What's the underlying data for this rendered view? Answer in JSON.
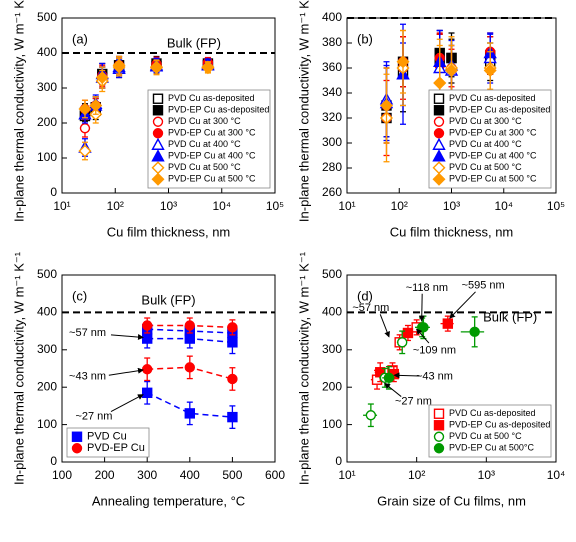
{
  "chart_data": [
    {
      "type": "scatter",
      "panel_label": "(a)",
      "x_label": "Cu film thickness, nm",
      "y_label": "In-plane thermal conductivity, W m⁻¹ K⁻¹",
      "log_x": true,
      "xlim": [
        10,
        100000
      ],
      "xticks": [
        {
          "value": 10,
          "label": "10¹"
        },
        {
          "value": 100,
          "label": "10²"
        },
        {
          "value": 1000,
          "label": "10³"
        },
        {
          "value": 10000,
          "label": "10⁴"
        },
        {
          "value": 100000,
          "label": "10⁵"
        }
      ],
      "ylim": [
        0,
        500
      ],
      "yticks": [
        0,
        100,
        200,
        300,
        400,
        500
      ],
      "legend": "lower right",
      "reference": {
        "value": 400,
        "label": "Bulk (FP)"
      },
      "series": [
        {
          "name": "PVD Cu as-deposited",
          "color": "#000000",
          "marker": "square",
          "filled": false,
          "x": [
            27,
            43,
            57,
            118,
            595,
            5500
          ],
          "values": [
            220,
            235,
            330,
            355,
            362,
            365
          ],
          "errors": [
            25,
            25,
            30,
            25,
            20,
            15
          ]
        },
        {
          "name": "PVD-EP Cu as-deposited",
          "color": "#000000",
          "marker": "square",
          "filled": true,
          "x": [
            27,
            43,
            57,
            118,
            595,
            5500
          ],
          "values": [
            230,
            245,
            340,
            365,
            370,
            370
          ],
          "errors": [
            25,
            25,
            30,
            25,
            20,
            15
          ]
        },
        {
          "name": "PVD Cu at 300 °C",
          "color": "#ff0000",
          "marker": "circle",
          "filled": false,
          "x": [
            27,
            43,
            57,
            118,
            595,
            5500
          ],
          "values": [
            185,
            245,
            330,
            360,
            365,
            370
          ],
          "errors": [
            25,
            25,
            30,
            25,
            20,
            15
          ]
        },
        {
          "name": "PVD-EP Cu at 300 °C",
          "color": "#ff0000",
          "marker": "circle",
          "filled": true,
          "x": [
            27,
            43,
            57,
            118,
            595,
            5500
          ],
          "values": [
            240,
            250,
            335,
            365,
            368,
            372
          ],
          "errors": [
            25,
            25,
            30,
            25,
            20,
            15
          ]
        },
        {
          "name": "PVD Cu at 400 °C",
          "color": "#0000ff",
          "marker": "triangle",
          "filled": false,
          "x": [
            27,
            43,
            57,
            118,
            595,
            5500
          ],
          "values": [
            130,
            255,
            330,
            355,
            362,
            365
          ],
          "errors": [
            25,
            25,
            30,
            25,
            20,
            15
          ]
        },
        {
          "name": "PVD-EP Cu at 400 °C",
          "color": "#0000ff",
          "marker": "triangle",
          "filled": true,
          "x": [
            27,
            43,
            57,
            118,
            595,
            5500
          ],
          "values": [
            225,
            250,
            340,
            360,
            365,
            368
          ],
          "errors": [
            25,
            25,
            30,
            25,
            20,
            15
          ]
        },
        {
          "name": "PVD Cu at 500 °C",
          "color": "#ff9900",
          "marker": "diamond",
          "filled": false,
          "x": [
            27,
            43,
            57,
            118,
            595,
            5500
          ],
          "values": [
            120,
            225,
            320,
            360,
            358,
            360
          ],
          "errors": [
            25,
            25,
            30,
            25,
            20,
            15
          ]
        },
        {
          "name": "PVD-EP Cu at 500 °C",
          "color": "#ff9900",
          "marker": "diamond",
          "filled": true,
          "x": [
            27,
            43,
            57,
            118,
            595,
            5500
          ],
          "values": [
            240,
            250,
            330,
            365,
            360,
            358
          ],
          "errors": [
            25,
            25,
            30,
            25,
            20,
            15
          ]
        }
      ]
    },
    {
      "type": "scatter",
      "panel_label": "(b)",
      "x_label": "Cu film thickness, nm",
      "y_label": "In-plane thermal conductivity, W m⁻¹ K⁻¹",
      "log_x": true,
      "xlim": [
        10,
        100000
      ],
      "xticks": [
        {
          "value": 10,
          "label": "10¹"
        },
        {
          "value": 100,
          "label": "10²"
        },
        {
          "value": 1000,
          "label": "10³"
        },
        {
          "value": 10000,
          "label": "10⁴"
        },
        {
          "value": 100000,
          "label": "10⁵"
        }
      ],
      "ylim": [
        260,
        400
      ],
      "yticks": [
        260,
        280,
        300,
        320,
        340,
        360,
        380,
        400
      ],
      "legend": "lower right",
      "reference": {
        "value": 400
      },
      "series": [
        {
          "name": "PVD Cu as-deposited",
          "color": "#000000",
          "marker": "square",
          "filled": false,
          "x": [
            57,
            118,
            595,
            1000,
            5500
          ],
          "values": [
            320,
            355,
            365,
            368,
            365
          ],
          "errors": [
            15,
            30,
            25,
            20,
            15
          ]
        },
        {
          "name": "PVD-EP Cu as-deposited",
          "color": "#000000",
          "marker": "square",
          "filled": true,
          "x": [
            57,
            118,
            595,
            1000,
            5500
          ],
          "values": [
            330,
            365,
            372,
            368,
            370
          ],
          "errors": [
            30,
            20,
            15,
            15,
            15
          ]
        },
        {
          "name": "PVD Cu at 300 °C",
          "color": "#ff0000",
          "marker": "circle",
          "filled": false,
          "x": [
            57,
            118,
            595,
            1000,
            5500
          ],
          "values": [
            320,
            360,
            362,
            358,
            370
          ],
          "errors": [
            30,
            25,
            25,
            20,
            15
          ]
        },
        {
          "name": "PVD-EP Cu at 300 °C",
          "color": "#ff0000",
          "marker": "circle",
          "filled": true,
          "x": [
            57,
            118,
            595,
            1000,
            5500
          ],
          "values": [
            330,
            365,
            368,
            360,
            373
          ],
          "errors": [
            30,
            20,
            20,
            15,
            15
          ]
        },
        {
          "name": "PVD Cu at 400 °C",
          "color": "#0000ff",
          "marker": "triangle",
          "filled": false,
          "x": [
            57,
            118,
            595,
            1000,
            5500
          ],
          "values": [
            335,
            355,
            360,
            358,
            368
          ],
          "errors": [
            30,
            40,
            30,
            20,
            20
          ]
        },
        {
          "name": "PVD-EP Cu at 400 °C",
          "color": "#0000ff",
          "marker": "triangle",
          "filled": true,
          "x": [
            57,
            118,
            595,
            1000,
            5500
          ],
          "values": [
            332,
            355,
            365,
            362,
            372
          ],
          "errors": [
            30,
            25,
            25,
            20,
            15
          ]
        },
        {
          "name": "PVD Cu at 500 °C",
          "color": "#ff9900",
          "marker": "diamond",
          "filled": false,
          "x": [
            57,
            118,
            595,
            1000,
            5500
          ],
          "values": [
            320,
            360,
            348,
            360,
            360
          ],
          "errors": [
            35,
            30,
            35,
            25,
            20
          ]
        },
        {
          "name": "PVD-EP Cu at 500 °C",
          "color": "#ff9900",
          "marker": "diamond",
          "filled": true,
          "x": [
            57,
            118,
            595,
            1000,
            5500
          ],
          "values": [
            330,
            365,
            348,
            358,
            358
          ],
          "errors": [
            30,
            25,
            30,
            20,
            15
          ]
        }
      ]
    },
    {
      "type": "line",
      "panel_label": "(c)",
      "x_label": "Annealing temperature, °C",
      "y_label": "In-plane thermal conductivity, W m⁻¹ K⁻¹",
      "xlim": [
        100,
        600
      ],
      "xticks": [
        100,
        200,
        300,
        400,
        500,
        600
      ],
      "ylim": [
        0,
        500
      ],
      "yticks": [
        0,
        100,
        200,
        300,
        400,
        500
      ],
      "legend": "lower left",
      "reference": {
        "value": 400,
        "label": "Bulk (FP)"
      },
      "x": [
        300,
        400,
        500
      ],
      "annotations": [
        "~57 nm",
        "~43 nm",
        "~27 nm"
      ],
      "series": [
        {
          "name": "PVD Cu",
          "color": "#0000ff",
          "marker": "square",
          "filled": true,
          "groups": [
            {
              "values": [
                355,
                350,
                345
              ],
              "errors": [
                20,
                20,
                20
              ]
            },
            {
              "values": [
                330,
                330,
                320
              ],
              "errors": [
                25,
                25,
                30
              ]
            },
            {
              "values": [
                185,
                130,
                120
              ],
              "errors": [
                30,
                30,
                30
              ]
            }
          ]
        },
        {
          "name": "PVD-EP Cu",
          "color": "#ff0000",
          "marker": "circle",
          "filled": true,
          "groups": [
            {
              "values": [
                365,
                365,
                360
              ],
              "errors": [
                20,
                20,
                20
              ]
            },
            {
              "values": [
                248,
                253,
                222
              ],
              "errors": [
                30,
                30,
                30
              ]
            }
          ]
        }
      ]
    },
    {
      "type": "scatter",
      "panel_label": "(d)",
      "x_label": "Grain size of Cu films, nm",
      "y_label": "In-plane thermal conductivity, W m⁻¹ K⁻¹",
      "log_x": true,
      "xlim": [
        10,
        10000
      ],
      "xticks": [
        {
          "value": 10,
          "label": "10¹"
        },
        {
          "value": 100,
          "label": "10²"
        },
        {
          "value": 1000,
          "label": "10³"
        },
        {
          "value": 10000,
          "label": "10⁴"
        }
      ],
      "ylim": [
        0,
        500
      ],
      "yticks": [
        0,
        100,
        200,
        300,
        400,
        500
      ],
      "legend": "lower right",
      "reference": {
        "value": 400,
        "label": "Bulk (FP)"
      },
      "annotations": [
        "~118 nm",
        "~595 nm",
        "~57 nm",
        "~109 nm",
        "~43 nm",
        "~27 nm"
      ],
      "series": [
        {
          "name": "PVD Cu as-deposited",
          "color": "#ff0000",
          "marker": "square",
          "filled": false,
          "x": [
            27,
            45,
            57,
            100
          ],
          "xerrors": [
            5,
            6,
            8,
            15
          ],
          "values": [
            220,
            245,
            320,
            360
          ],
          "errors": [
            25,
            20,
            20,
            20
          ]
        },
        {
          "name": "PVD-EP Cu as-deposited",
          "color": "#ff0000",
          "marker": "square",
          "filled": true,
          "x": [
            30,
            47,
            75,
            280
          ],
          "xerrors": [
            5,
            7,
            12,
            60
          ],
          "values": [
            240,
            235,
            345,
            370
          ],
          "errors": [
            25,
            20,
            20,
            20
          ]
        },
        {
          "name": "PVD Cu at 500 °C",
          "color": "#009900",
          "marker": "circle",
          "filled": false,
          "x": [
            22,
            35,
            62,
            120
          ],
          "xerrors": [
            5,
            6,
            10,
            25
          ],
          "values": [
            125,
            225,
            320,
            360
          ],
          "errors": [
            30,
            25,
            30,
            25
          ]
        },
        {
          "name": "PVD-EP Cu at 500°C",
          "color": "#009900",
          "marker": "circle",
          "filled": true,
          "x": [
            40,
            125,
            680
          ],
          "xerrors": [
            8,
            30,
            250
          ],
          "values": [
            225,
            360,
            348
          ],
          "errors": [
            30,
            30,
            40
          ]
        }
      ]
    }
  ]
}
